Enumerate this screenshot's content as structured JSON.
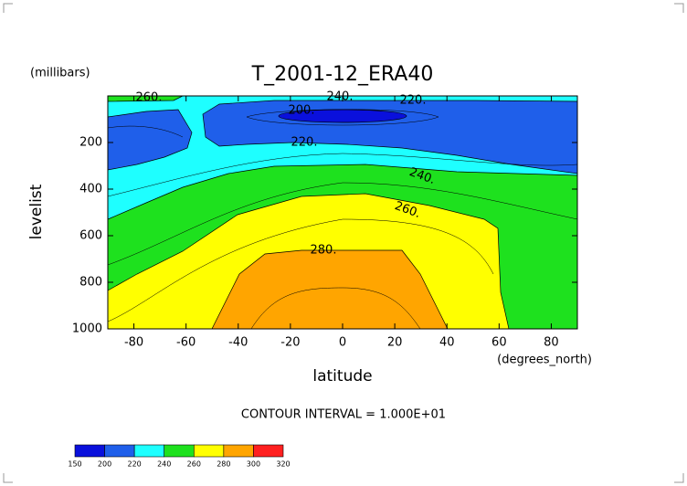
{
  "chart_data": {
    "type": "contour",
    "title": "T_2001-12_ERA40",
    "y_unit_label": "(millibars)",
    "ylabel": "levelist",
    "xlabel": "latitude",
    "x_unit_label": "(degrees_north)",
    "footnote": "CONTOUR INTERVAL = 1.000E+01",
    "xlim": [
      -90,
      90
    ],
    "xticks": [
      -80,
      -60,
      -40,
      -20,
      0,
      20,
      40,
      60,
      80
    ],
    "ylim": [
      1000,
      0
    ],
    "yticks": [
      200,
      400,
      600,
      800,
      1000
    ],
    "levels": [
      150,
      200,
      220,
      240,
      260,
      280,
      300,
      320
    ],
    "level_colors": [
      "#0a10dc",
      "#1f5fea",
      "#1effff",
      "#1ee11e",
      "#ffff00",
      "#ffa500",
      "#ff2020"
    ],
    "contour_labels": [
      "260.",
      "240.",
      "220.",
      "200.",
      "220.",
      "240.",
      "260.",
      "280."
    ]
  }
}
